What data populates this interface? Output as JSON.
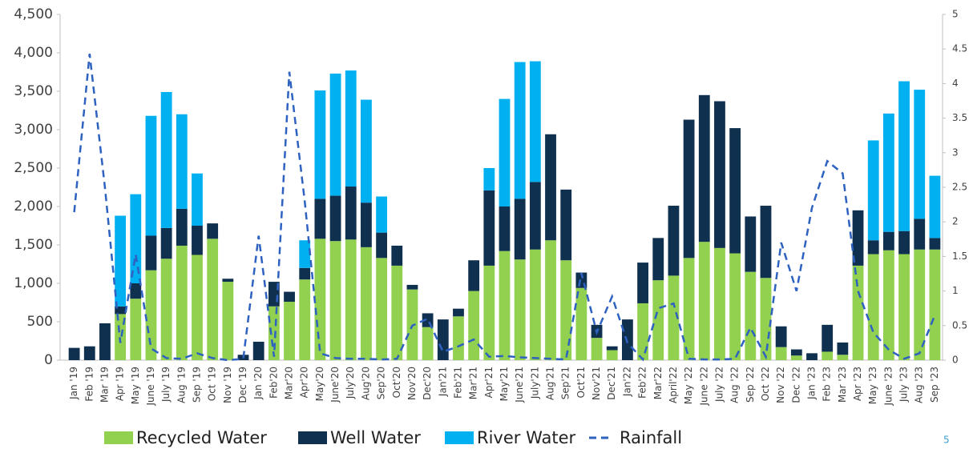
{
  "chart_data": {
    "type": "bar",
    "stacked": true,
    "categories": [
      "Jan '19",
      "Feb '19",
      "Mar '19",
      "Apr '19",
      "May '19",
      "June '19",
      "July '19",
      "Aug '19",
      "Sep '19",
      "Oct '19",
      "Nov '19",
      "Dec '19",
      "Jan '20",
      "Feb'20",
      "Mar'20",
      "Apr'20",
      "May'20",
      "June'20",
      "July'20",
      "Aug'20",
      "Sep'20",
      "Oct'20",
      "Nov'20",
      "Dec'20",
      "Jan'21",
      "Feb'21",
      "Mar'21",
      "Apr'21",
      "May'21",
      "June'21",
      "July'21",
      "Aug'21",
      "Sep'21",
      "Oct'21",
      "Nov'21",
      "Dec'21",
      "Jan'22",
      "Feb'22",
      "Mar'22",
      "April'22",
      "May '22",
      "June '22",
      "July '22",
      "Aug '22",
      "Sep '22",
      "Oct '22",
      "Nov '22",
      "Dec '22",
      "Jan '23",
      "Feb '23",
      "Mar '23",
      "Apr '23",
      "May '23",
      "June '23",
      "July '23",
      "Aug '23",
      "Sep '23"
    ],
    "series": [
      {
        "name": "Recycled Water",
        "color": "#92d050",
        "values": [
          0,
          0,
          0,
          600,
          800,
          1170,
          1320,
          1490,
          1370,
          1580,
          1020,
          0,
          0,
          700,
          760,
          1050,
          1580,
          1550,
          1570,
          1470,
          1330,
          1230,
          920,
          430,
          0,
          570,
          900,
          1230,
          1420,
          1310,
          1440,
          1560,
          1300,
          940,
          290,
          130,
          0,
          740,
          1040,
          1100,
          1330,
          1540,
          1460,
          1390,
          1150,
          1070,
          170,
          60,
          0,
          110,
          70,
          1230,
          1380,
          1430,
          1380,
          1440,
          1440
        ]
      },
      {
        "name": "Well Water",
        "color": "#10304f",
        "values": [
          160,
          180,
          480,
          100,
          200,
          450,
          400,
          480,
          380,
          200,
          40,
          70,
          240,
          320,
          130,
          150,
          520,
          590,
          690,
          580,
          330,
          260,
          60,
          180,
          530,
          100,
          400,
          980,
          580,
          790,
          880,
          1380,
          920,
          200,
          170,
          50,
          530,
          530,
          550,
          910,
          1800,
          1910,
          1910,
          1630,
          720,
          940,
          270,
          80,
          90,
          350,
          160,
          720,
          180,
          240,
          300,
          400,
          150
        ]
      },
      {
        "name": "River Water",
        "color": "#00b0f0",
        "values": [
          0,
          0,
          0,
          1180,
          1160,
          1560,
          1770,
          1230,
          680,
          0,
          0,
          0,
          0,
          0,
          0,
          360,
          1410,
          1590,
          1510,
          1340,
          470,
          0,
          0,
          0,
          0,
          0,
          0,
          290,
          1400,
          1780,
          1570,
          0,
          0,
          0,
          0,
          0,
          0,
          0,
          0,
          0,
          0,
          0,
          0,
          0,
          0,
          0,
          0,
          0,
          0,
          0,
          0,
          0,
          1300,
          1540,
          1950,
          1680,
          810
        ]
      },
      {
        "name": "Rainfall",
        "type": "line",
        "axis": "y2",
        "color": "#2e62c0",
        "values": [
          2.14,
          4.43,
          2.5,
          0.25,
          1.53,
          0.17,
          0.03,
          0.02,
          0.1,
          0.03,
          0,
          0.02,
          1.8,
          0.05,
          4.17,
          2.3,
          0.1,
          0.03,
          0.02,
          0.02,
          0.01,
          0.02,
          0.5,
          0.6,
          0.12,
          0.2,
          0.3,
          0.05,
          0.06,
          0.04,
          0.03,
          0.02,
          0.01,
          1.26,
          0.4,
          0.92,
          0.25,
          0.01,
          0.75,
          0.82,
          0.02,
          0.01,
          0.01,
          0.02,
          0.47,
          0.05,
          1.7,
          1.0,
          2.2,
          2.88,
          2.7,
          1.0,
          0.4,
          0.15,
          0.02,
          0.1,
          0.65
        ]
      }
    ],
    "ylim": [
      0,
      4500
    ],
    "yticks": [
      0,
      500,
      {
        "value": 1000,
        "label": "1,000"
      },
      {
        "value": 1500,
        "label": "1,500"
      },
      {
        "value": 2000,
        "label": "2,000"
      },
      {
        "value": 2500,
        "label": "2,500"
      },
      {
        "value": 3000,
        "label": "3,000"
      },
      {
        "value": 3500,
        "label": "3,500"
      },
      {
        "value": 4000,
        "label": "4,000"
      },
      {
        "value": 4500,
        "label": "4,500"
      }
    ],
    "y2lim": [
      0,
      5
    ],
    "y2ticks": [
      0,
      0.5,
      1,
      1.5,
      2,
      2.5,
      3,
      3.5,
      4,
      4.5,
      5
    ],
    "legend": "bottom"
  },
  "slide_number": "5"
}
